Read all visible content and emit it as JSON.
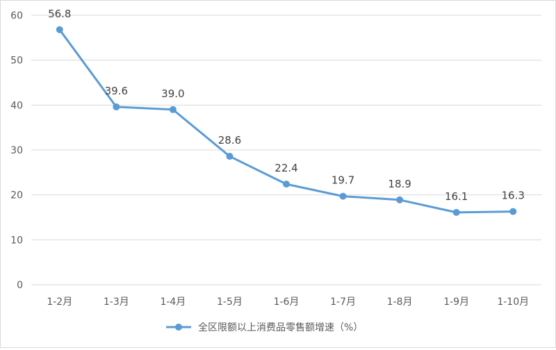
{
  "chart_data": {
    "type": "line",
    "title": "",
    "xlabel": "",
    "ylabel": "",
    "categories": [
      "1-2月",
      "1-3月",
      "1-4月",
      "1-5月",
      "1-6月",
      "1-7月",
      "1-8月",
      "1-9月",
      "1-10月"
    ],
    "series": [
      {
        "name": "全区限额以上消费品零售额增速（%）",
        "values": [
          56.8,
          39.6,
          39.0,
          28.6,
          22.4,
          19.7,
          18.9,
          16.1,
          16.3
        ],
        "labels": [
          "56.8",
          "39.6",
          "39.0",
          "28.6",
          "22.4",
          "19.7",
          "18.9",
          "16.1",
          "16.3"
        ],
        "color": "#5b9bd5"
      }
    ],
    "ylim": [
      0,
      60
    ],
    "yticks": [
      0,
      10,
      20,
      30,
      40,
      50,
      60
    ],
    "grid": true,
    "legend_position": "bottom"
  }
}
